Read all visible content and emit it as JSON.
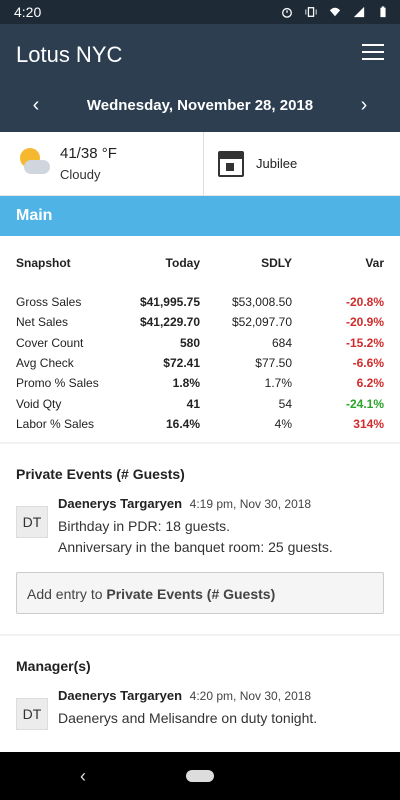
{
  "status": {
    "time": "4:20",
    "icons": [
      "alarm-icon",
      "vibrate-icon",
      "wifi-icon",
      "signal-icon",
      "battery-icon"
    ]
  },
  "app": {
    "title": "Lotus NYC",
    "date": "Wednesday, November 28, 2018"
  },
  "weather": {
    "temp": "41/38 °F",
    "condition": "Cloudy"
  },
  "calendar": {
    "event": "Jubilee"
  },
  "main_label": "Main",
  "snapshot": {
    "headers": [
      "Snapshot",
      "Today",
      "SDLY",
      "Var"
    ],
    "rows": [
      {
        "label": "Gross Sales",
        "today": "$41,995.75",
        "sdly": "$53,008.50",
        "var": "-20.8%",
        "var_color": "#d12b2b"
      },
      {
        "label": "Net Sales",
        "today": "$41,229.70",
        "sdly": "$52,097.70",
        "var": "-20.9%",
        "var_color": "#d12b2b"
      },
      {
        "label": "Cover Count",
        "today": "580",
        "sdly": "684",
        "var": "-15.2%",
        "var_color": "#d12b2b"
      },
      {
        "label": "Avg Check",
        "today": "$72.41",
        "sdly": "$77.50",
        "var": "-6.6%",
        "var_color": "#d12b2b"
      },
      {
        "label": "Promo % Sales",
        "today": "1.8%",
        "sdly": "1.7%",
        "var": "6.2%",
        "var_color": "#d12b2b"
      },
      {
        "label": "Void Qty",
        "today": "41",
        "sdly": "54",
        "var": "-24.1%",
        "var_color": "#2aa52a"
      },
      {
        "label": "Labor % Sales",
        "today": "16.4%",
        "sdly": "4%",
        "var": "314%",
        "var_color": "#d12b2b"
      }
    ]
  },
  "private_events": {
    "title": "Private Events (# Guests)",
    "entry": {
      "initials": "DT",
      "author": "Daenerys Targaryen",
      "time": "4:19 pm, Nov 30, 2018",
      "lines": [
        "Birthday in PDR: 18 guests.",
        "Anniversary in the banquet room: 25 guests."
      ]
    },
    "add_prefix": "Add entry to ",
    "add_target": "Private Events (# Guests)"
  },
  "managers": {
    "title": "Manager(s)",
    "entry": {
      "initials": "DT",
      "author": "Daenerys Targaryen",
      "time": "4:20 pm, Nov 30, 2018",
      "lines": [
        "Daenerys and Melisandre on duty tonight."
      ]
    }
  },
  "colors": {
    "header": "#2c3e50",
    "accent": "#4fb3e6",
    "negative": "#d12b2b",
    "positive": "#2aa52a"
  }
}
